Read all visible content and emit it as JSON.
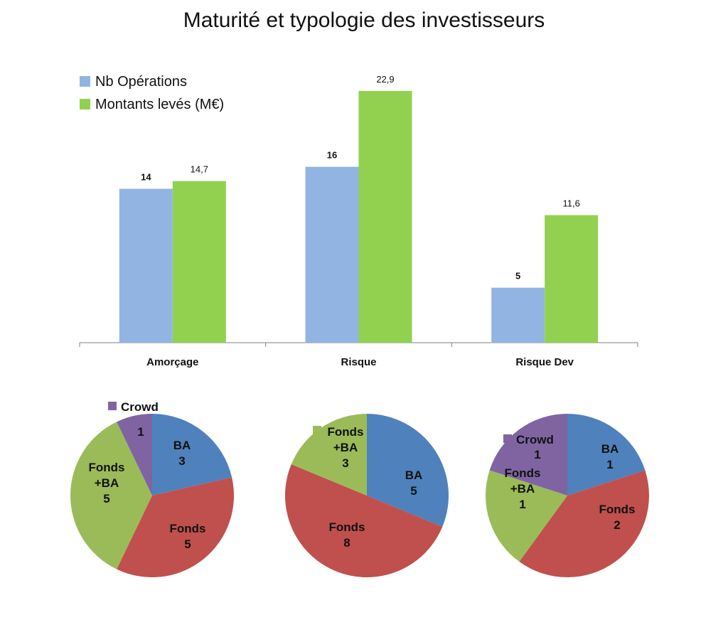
{
  "title": "Maturité et typologie des investisseurs",
  "chart_data": [
    {
      "type": "bar",
      "categories": [
        "Amorçage",
        "Risque",
        "Risque Dev"
      ],
      "series": [
        {
          "name": "Nb Opérations",
          "values": [
            14,
            16,
            5
          ],
          "labels": [
            "14",
            "16",
            "5"
          ],
          "color": "#92b4e3"
        },
        {
          "name": "Montants levés (M€)",
          "values": [
            14.7,
            22.9,
            11.6
          ],
          "labels": [
            "14,7",
            "22,9",
            "11,6"
          ],
          "color": "#92d050"
        }
      ],
      "ylim": [
        0,
        26
      ],
      "grid": false,
      "legend": "top-left"
    },
    {
      "type": "pie",
      "category": "Amorçage",
      "slices": [
        {
          "name": "BA",
          "value": 3,
          "color": "#4f81bd"
        },
        {
          "name": "Fonds",
          "value": 5,
          "color": "#c0504d"
        },
        {
          "name": "Fonds +BA",
          "value": 5,
          "color": "#9bbb59"
        },
        {
          "name": "Crowd",
          "value": 1,
          "color": "#8064a2"
        }
      ]
    },
    {
      "type": "pie",
      "category": "Risque",
      "slices": [
        {
          "name": "BA",
          "value": 5,
          "color": "#4f81bd"
        },
        {
          "name": "Fonds",
          "value": 8,
          "color": "#c0504d"
        },
        {
          "name": "Fonds +BA",
          "value": 3,
          "color": "#9bbb59"
        }
      ]
    },
    {
      "type": "pie",
      "category": "Risque Dev",
      "slices": [
        {
          "name": "BA",
          "value": 1,
          "color": "#4f81bd"
        },
        {
          "name": "Fonds",
          "value": 2,
          "color": "#c0504d"
        },
        {
          "name": "Fonds +BA",
          "value": 1,
          "color": "#9bbb59"
        },
        {
          "name": "Crowd",
          "value": 1,
          "color": "#8064a2"
        }
      ]
    }
  ]
}
